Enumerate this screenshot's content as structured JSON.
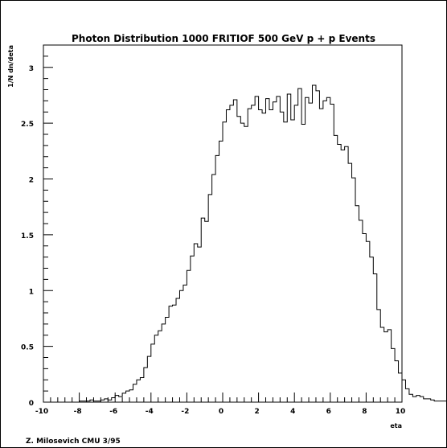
{
  "chart_data": {
    "type": "histogram",
    "title": "Photon Distribution 1000 FRITIOF 500 GeV p + p Events",
    "xlabel": "eta",
    "ylabel": "1/N dn/deta",
    "footer": "Z. Milosevich CMU 3/95",
    "xlim": [
      -10,
      10
    ],
    "ylim": [
      0,
      3.2
    ],
    "grid": false,
    "legend": "none",
    "x_ticks": [
      -10,
      -8,
      -6,
      -4,
      -2,
      0,
      2,
      4,
      6,
      8,
      10
    ],
    "y_ticks": [
      0,
      0.5,
      1,
      1.5,
      2,
      2.5,
      3
    ],
    "x_tick_labels": [
      "-10",
      "-8",
      "-6",
      "-4",
      "-2",
      "0",
      "2",
      "4",
      "6",
      "8",
      "10"
    ],
    "y_tick_labels": [
      "0",
      "0.5",
      "1",
      "1.5",
      "2",
      "2.5",
      "3"
    ],
    "bin_start": -10,
    "bin_width": 0.2,
    "values": [
      0,
      0,
      0,
      0,
      0,
      0,
      0,
      0,
      0,
      0,
      0.01,
      0.01,
      0.01,
      0.02,
      0.01,
      0.01,
      0.02,
      0.03,
      0.02,
      0.04,
      0.06,
      0.05,
      0.08,
      0.1,
      0.11,
      0.16,
      0.2,
      0.22,
      0.31,
      0.41,
      0.52,
      0.6,
      0.64,
      0.7,
      0.76,
      0.86,
      0.87,
      0.93,
      1.0,
      1.05,
      1.18,
      1.31,
      1.42,
      1.39,
      1.65,
      1.62,
      1.86,
      2.04,
      2.21,
      2.34,
      2.51,
      2.62,
      2.66,
      2.71,
      2.56,
      2.5,
      2.47,
      2.63,
      2.66,
      2.74,
      2.62,
      2.59,
      2.72,
      2.62,
      2.69,
      2.74,
      2.6,
      2.51,
      2.76,
      2.53,
      2.66,
      2.81,
      2.49,
      2.73,
      2.68,
      2.84,
      2.79,
      2.63,
      2.7,
      2.73,
      2.67,
      2.39,
      2.31,
      2.26,
      2.29,
      2.14,
      2.01,
      1.76,
      1.63,
      1.51,
      1.44,
      1.3,
      1.15,
      0.83,
      0.67,
      0.63,
      0.65,
      0.48,
      0.37,
      0.26,
      0.2,
      0.12,
      0.07,
      0.05,
      0.06,
      0.05,
      0.03,
      0.03,
      0.02,
      0.01,
      0.01,
      0.01,
      0.01,
      0.01,
      0,
      0,
      0,
      0,
      0,
      0
    ]
  }
}
